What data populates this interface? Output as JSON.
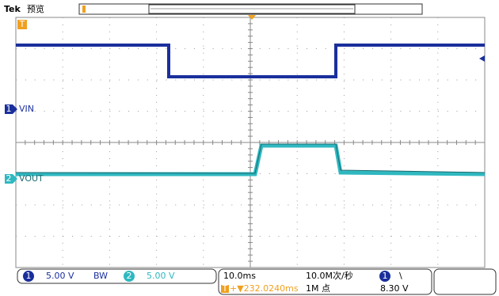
{
  "header": {
    "brand": "Tek",
    "mode": "预览"
  },
  "channels": [
    {
      "number": "1",
      "label": "VIN",
      "scale": "5.00 V",
      "bandwidth": "BW"
    },
    {
      "number": "2",
      "label": "VOUT",
      "scale": "5.00 V"
    }
  ],
  "horizontal": {
    "scale": "10.0ms",
    "sample_rate": "10.0M次/秒",
    "record_length": "1M 点"
  },
  "trigger": {
    "marker": "T",
    "position": "+▼232.0240ms",
    "source": "1",
    "slope": "\\",
    "level": "8.30 V"
  }
}
